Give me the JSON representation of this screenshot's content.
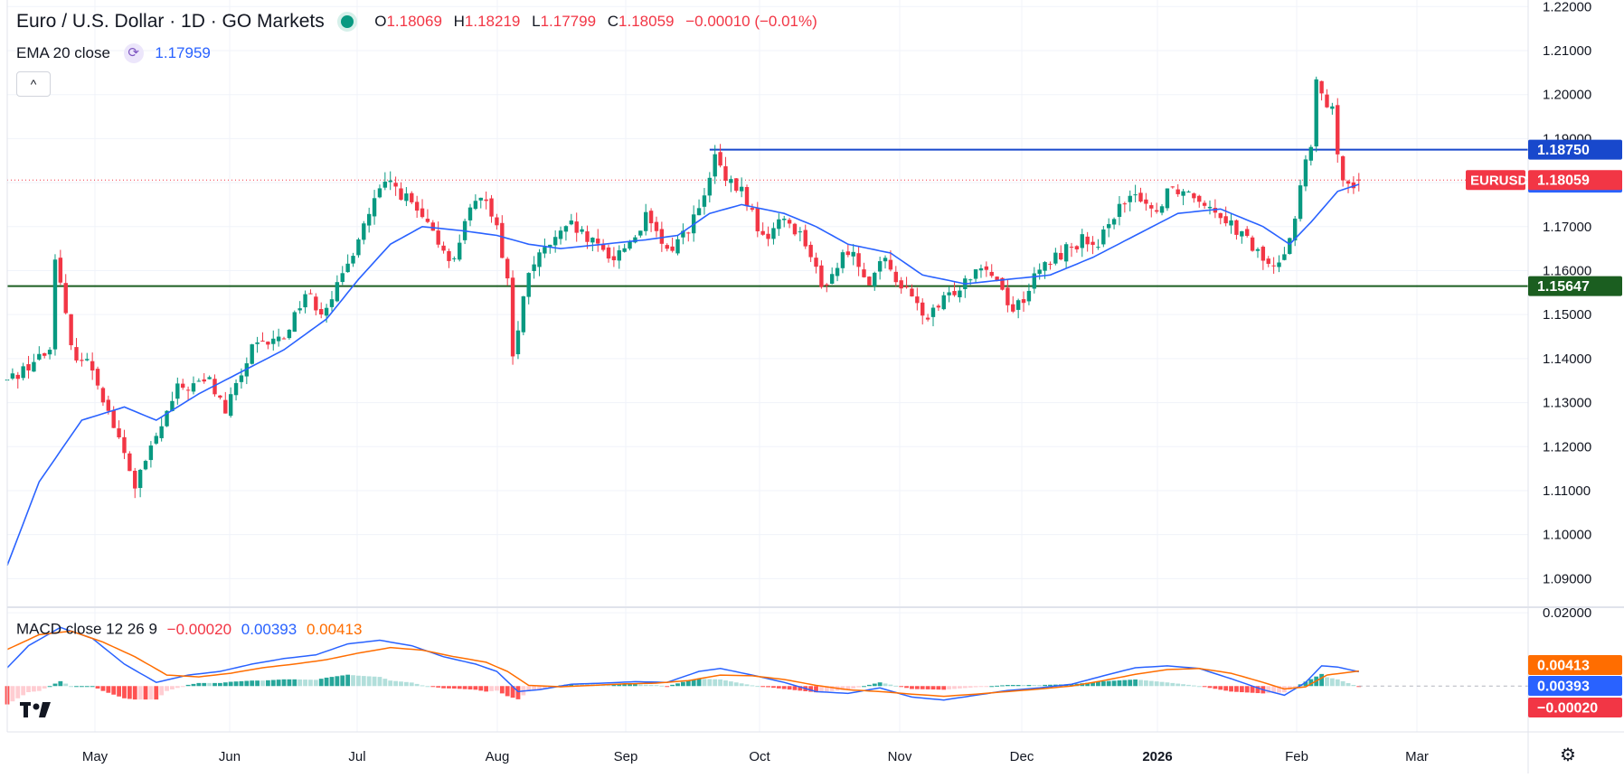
{
  "header": {
    "title": "Euro / U.S. Dollar · 1D · GO Markets",
    "ohlc": [
      {
        "k": "O",
        "v": "1.18069"
      },
      {
        "k": "H",
        "v": "1.18219"
      },
      {
        "k": "L",
        "v": "1.17799"
      },
      {
        "k": "C",
        "v": "1.18059"
      }
    ],
    "change": "−0.00010 (−0.01%)",
    "ema_label": "EMA 20 close",
    "ema_value": "1.17959",
    "collapse_glyph": "^"
  },
  "macd_legend": {
    "label": "MACD close 12 26 9",
    "hist": "−0.00020",
    "macd": "0.00393",
    "signal": "0.00413"
  },
  "colors": {
    "up": "#089981",
    "down": "#f23645",
    "ema": "#2962ff",
    "signal": "#ff6d00",
    "hist_up": "#26a69a",
    "hist_up_weak": "#b2dfdb",
    "hist_down": "#ff5252",
    "hist_down_weak": "#ffcdd2",
    "resistance": "#1848cc",
    "support": "#1b5e20",
    "grid": "#f0f3fa"
  },
  "icons": {
    "status": "market-open-dot-icon",
    "ema": "sync-icon",
    "collapse": "chevron-up-icon",
    "settings": "gear-icon",
    "logo": "tradingview-logo-icon"
  },
  "chart_data": {
    "type": "candlestick",
    "symbol": "EURUSD",
    "interval": "1D",
    "x_ticks": [
      "May",
      "Jun",
      "Jul",
      "Aug",
      "Sep",
      "Oct",
      "Nov",
      "Dec",
      "2026",
      "Feb",
      "Mar"
    ],
    "y_ticks": [
      "1.22000",
      "1.21000",
      "1.20000",
      "1.19000",
      "1.18000",
      "1.17000",
      "1.16000",
      "1.15000",
      "1.14000",
      "1.13000",
      "1.12000",
      "1.11000",
      "1.10000",
      "1.09000"
    ],
    "ylim": [
      1.0835,
      1.2215
    ],
    "price_anchors": [
      [
        0,
        1.135
      ],
      [
        8,
        1.142
      ],
      [
        9,
        1.164
      ],
      [
        12,
        1.142
      ],
      [
        16,
        1.138
      ],
      [
        22,
        1.118
      ],
      [
        24,
        1.111
      ],
      [
        28,
        1.122
      ],
      [
        32,
        1.133
      ],
      [
        38,
        1.135
      ],
      [
        41,
        1.128
      ],
      [
        46,
        1.142
      ],
      [
        52,
        1.145
      ],
      [
        56,
        1.155
      ],
      [
        59,
        1.151
      ],
      [
        63,
        1.158
      ],
      [
        66,
        1.168
      ],
      [
        70,
        1.178
      ],
      [
        72,
        1.18
      ],
      [
        76,
        1.175
      ],
      [
        80,
        1.168
      ],
      [
        84,
        1.162
      ],
      [
        86,
        1.172
      ],
      [
        90,
        1.177
      ],
      [
        92,
        1.17
      ],
      [
        94,
        1.158
      ],
      [
        95,
        1.141
      ],
      [
        96,
        1.146
      ],
      [
        98,
        1.16
      ],
      [
        102,
        1.166
      ],
      [
        106,
        1.17
      ],
      [
        110,
        1.166
      ],
      [
        114,
        1.163
      ],
      [
        118,
        1.168
      ],
      [
        120,
        1.172
      ],
      [
        124,
        1.164
      ],
      [
        128,
        1.17
      ],
      [
        131,
        1.176
      ],
      [
        133,
        1.186
      ],
      [
        135,
        1.18
      ],
      [
        138,
        1.178
      ],
      [
        140,
        1.173
      ],
      [
        142,
        1.167
      ],
      [
        146,
        1.172
      ],
      [
        150,
        1.167
      ],
      [
        153,
        1.156
      ],
      [
        156,
        1.161
      ],
      [
        158,
        1.165
      ],
      [
        162,
        1.158
      ],
      [
        165,
        1.162
      ],
      [
        169,
        1.155
      ],
      [
        173,
        1.149
      ],
      [
        176,
        1.153
      ],
      [
        180,
        1.158
      ],
      [
        183,
        1.162
      ],
      [
        186,
        1.158
      ],
      [
        189,
        1.151
      ],
      [
        191,
        1.154
      ],
      [
        194,
        1.16
      ],
      [
        198,
        1.164
      ],
      [
        202,
        1.167
      ],
      [
        205,
        1.164
      ],
      [
        207,
        1.172
      ],
      [
        210,
        1.175
      ],
      [
        213,
        1.177
      ],
      [
        216,
        1.173
      ],
      [
        218,
        1.179
      ],
      [
        222,
        1.178
      ],
      [
        225,
        1.176
      ],
      [
        229,
        1.172
      ],
      [
        232,
        1.168
      ],
      [
        235,
        1.164
      ],
      [
        238,
        1.16
      ],
      [
        240,
        1.165
      ],
      [
        242,
        1.172
      ],
      [
        244,
        1.185
      ],
      [
        245,
        1.188
      ],
      [
        246,
        1.202
      ],
      [
        247,
        1.2
      ],
      [
        248,
        1.198
      ],
      [
        249,
        1.196
      ],
      [
        250,
        1.185
      ],
      [
        251,
        1.182
      ],
      [
        252,
        1.181
      ],
      [
        253,
        1.18
      ],
      [
        254,
        1.1806
      ]
    ],
    "ema20": [
      [
        0,
        1.093
      ],
      [
        6,
        1.112
      ],
      [
        14,
        1.126
      ],
      [
        22,
        1.129
      ],
      [
        28,
        1.126
      ],
      [
        36,
        1.132
      ],
      [
        44,
        1.137
      ],
      [
        52,
        1.142
      ],
      [
        60,
        1.149
      ],
      [
        66,
        1.158
      ],
      [
        72,
        1.166
      ],
      [
        78,
        1.17
      ],
      [
        86,
        1.169
      ],
      [
        92,
        1.168
      ],
      [
        98,
        1.166
      ],
      [
        104,
        1.165
      ],
      [
        112,
        1.166
      ],
      [
        120,
        1.167
      ],
      [
        126,
        1.168
      ],
      [
        132,
        1.173
      ],
      [
        138,
        1.175
      ],
      [
        146,
        1.173
      ],
      [
        152,
        1.17
      ],
      [
        158,
        1.166
      ],
      [
        166,
        1.164
      ],
      [
        172,
        1.159
      ],
      [
        180,
        1.157
      ],
      [
        188,
        1.158
      ],
      [
        196,
        1.159
      ],
      [
        204,
        1.163
      ],
      [
        212,
        1.168
      ],
      [
        220,
        1.173
      ],
      [
        228,
        1.174
      ],
      [
        236,
        1.17
      ],
      [
        241,
        1.166
      ],
      [
        245,
        1.171
      ],
      [
        250,
        1.178
      ],
      [
        254,
        1.1796
      ]
    ],
    "levels": [
      {
        "label": "1.18750",
        "price": 1.1875,
        "color": "#1848cc",
        "from_bar": 132
      },
      {
        "label": "1.15647",
        "price": 1.15647,
        "color": "#1b5e20",
        "from_bar": 0
      }
    ],
    "current": {
      "label": "EURUSD",
      "value": "1.18059",
      "price": 1.18059
    },
    "ema_tag_price": 1.17959,
    "macd": {
      "y_ticks": [
        "0.02000"
      ],
      "ylim": [
        -0.0125,
        0.0215
      ],
      "tags": [
        {
          "label": "0.00413",
          "value": 0.00413,
          "color": "#ff6d00"
        },
        {
          "label": "0.00393",
          "value": 0.00393,
          "color": "#2962ff"
        },
        {
          "label": "−0.00020",
          "value": -0.0002,
          "color": "#f23645"
        }
      ],
      "macd_anchors": [
        [
          0,
          0.005
        ],
        [
          4,
          0.011
        ],
        [
          10,
          0.016
        ],
        [
          16,
          0.013
        ],
        [
          22,
          0.006
        ],
        [
          28,
          0.001
        ],
        [
          34,
          0.003
        ],
        [
          40,
          0.004
        ],
        [
          46,
          0.006
        ],
        [
          52,
          0.0075
        ],
        [
          58,
          0.0085
        ],
        [
          64,
          0.0115
        ],
        [
          70,
          0.0125
        ],
        [
          76,
          0.011
        ],
        [
          82,
          0.008
        ],
        [
          88,
          0.006
        ],
        [
          92,
          0.004
        ],
        [
          96,
          -0.0015
        ],
        [
          100,
          -0.001
        ],
        [
          106,
          0.0005
        ],
        [
          112,
          0.0008
        ],
        [
          118,
          0.0012
        ],
        [
          124,
          0.001
        ],
        [
          130,
          0.004
        ],
        [
          134,
          0.0048
        ],
        [
          140,
          0.003
        ],
        [
          146,
          0.001
        ],
        [
          152,
          -0.0015
        ],
        [
          158,
          -0.002
        ],
        [
          164,
          -0.0005
        ],
        [
          170,
          -0.003
        ],
        [
          176,
          -0.0038
        ],
        [
          182,
          -0.0025
        ],
        [
          188,
          -0.0012
        ],
        [
          194,
          -0.0005
        ],
        [
          200,
          0.0005
        ],
        [
          206,
          0.0028
        ],
        [
          212,
          0.005
        ],
        [
          218,
          0.0055
        ],
        [
          224,
          0.0048
        ],
        [
          230,
          0.002
        ],
        [
          236,
          -0.001
        ],
        [
          240,
          -0.0025
        ],
        [
          244,
          0.001
        ],
        [
          247,
          0.0055
        ],
        [
          250,
          0.0052
        ],
        [
          254,
          0.0039
        ]
      ],
      "signal_anchors": [
        [
          0,
          0.01
        ],
        [
          6,
          0.014
        ],
        [
          12,
          0.015
        ],
        [
          18,
          0.012
        ],
        [
          24,
          0.008
        ],
        [
          30,
          0.003
        ],
        [
          36,
          0.0025
        ],
        [
          42,
          0.0035
        ],
        [
          48,
          0.005
        ],
        [
          54,
          0.006
        ],
        [
          60,
          0.0072
        ],
        [
          66,
          0.009
        ],
        [
          72,
          0.0105
        ],
        [
          78,
          0.0098
        ],
        [
          84,
          0.008
        ],
        [
          90,
          0.0065
        ],
        [
          94,
          0.004
        ],
        [
          98,
          0.0002
        ],
        [
          104,
          -0.0002
        ],
        [
          110,
          0.0002
        ],
        [
          116,
          0.0006
        ],
        [
          122,
          0.0008
        ],
        [
          128,
          0.0015
        ],
        [
          134,
          0.003
        ],
        [
          140,
          0.0028
        ],
        [
          146,
          0.0018
        ],
        [
          152,
          0.0002
        ],
        [
          158,
          -0.001
        ],
        [
          164,
          -0.0015
        ],
        [
          170,
          -0.0022
        ],
        [
          176,
          -0.0028
        ],
        [
          182,
          -0.0022
        ],
        [
          188,
          -0.0015
        ],
        [
          194,
          -0.0008
        ],
        [
          200,
          0.0
        ],
        [
          206,
          0.0015
        ],
        [
          212,
          0.0032
        ],
        [
          218,
          0.0045
        ],
        [
          224,
          0.0048
        ],
        [
          230,
          0.0035
        ],
        [
          236,
          0.001
        ],
        [
          240,
          -0.0008
        ],
        [
          244,
          -0.0002
        ],
        [
          248,
          0.003
        ],
        [
          254,
          0.0041
        ]
      ]
    }
  }
}
